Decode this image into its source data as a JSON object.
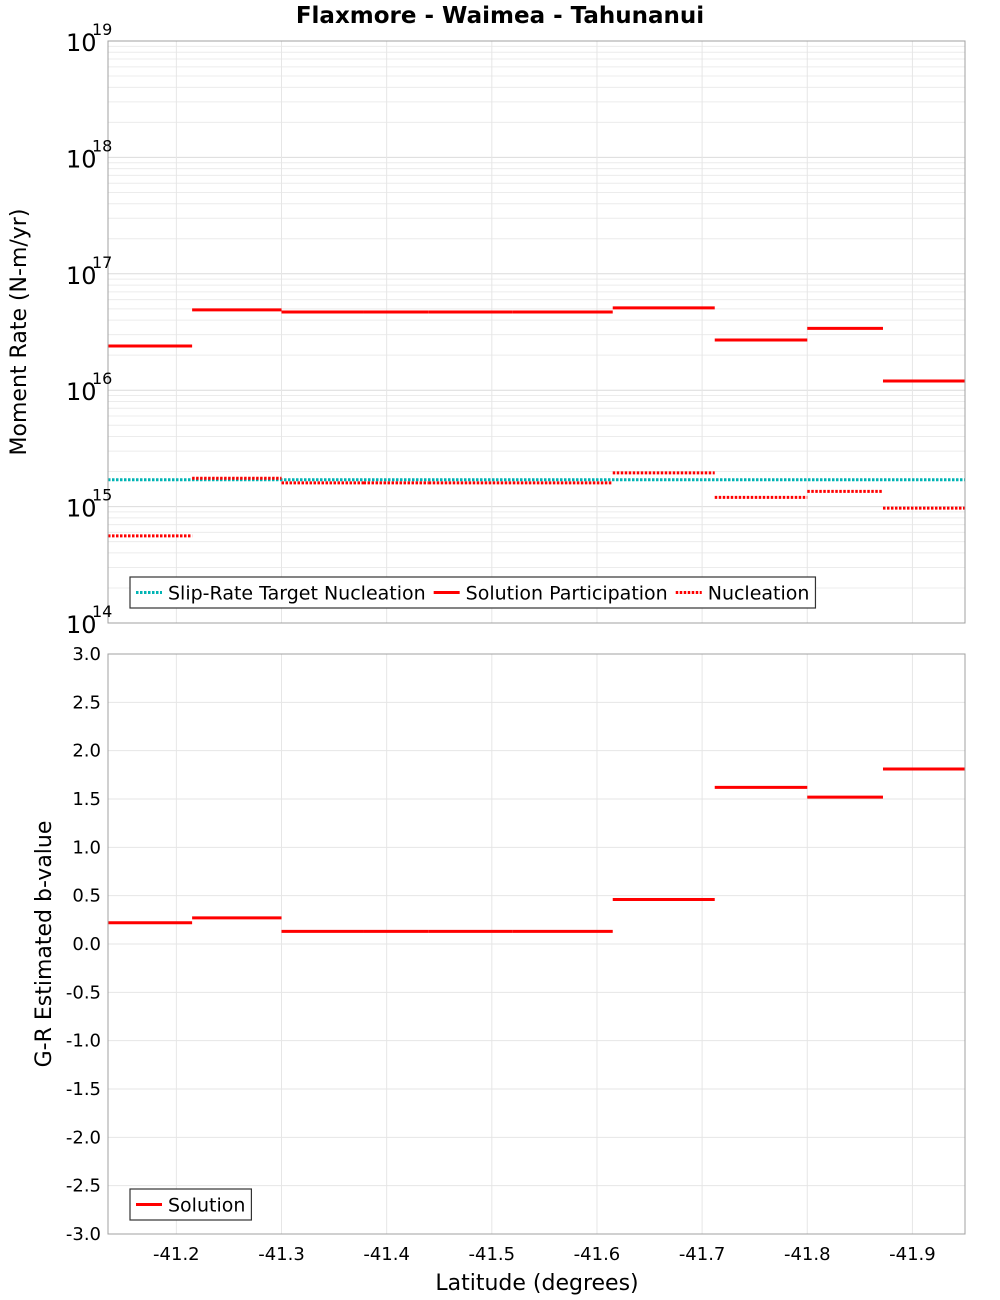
{
  "chart_data": [
    {
      "type": "line",
      "title": "Flaxmore - Waimea - Tahunanui",
      "xlabel": "Latitude (degrees)",
      "ylabel": "Moment Rate (N-m/yr)",
      "yscale": "log",
      "xlim": [
        -41.135,
        -41.95
      ],
      "ylim": [
        100000000000000.0,
        1e+19
      ],
      "x_ticks": [
        -41.2,
        -41.3,
        -41.4,
        -41.5,
        -41.6,
        -41.7,
        -41.8,
        -41.9
      ],
      "x_tick_labels": [
        "-41.2",
        "-41.3",
        "-41.4",
        "-41.5",
        "-41.6",
        "-41.7",
        "-41.8",
        "-41.9"
      ],
      "y_ticks": [
        {
          "value": 100000000000000.0,
          "base": "10",
          "exp": "14"
        },
        {
          "value": 1000000000000000.0,
          "base": "10",
          "exp": "15"
        },
        {
          "value": 1e+16,
          "base": "10",
          "exp": "16"
        },
        {
          "value": 1e+17,
          "base": "10",
          "exp": "17"
        },
        {
          "value": 1e+18,
          "base": "10",
          "exp": "18"
        },
        {
          "value": 1e+19,
          "base": "10",
          "exp": "19"
        }
      ],
      "grid": true,
      "legend_position": "bottom-left",
      "series": [
        {
          "name": "Slip-Rate Target Nucleation",
          "color": "#00b4b4",
          "style": "dotted",
          "segments": [
            {
              "x0": -41.135,
              "x1": -41.95,
              "y": 1700000000000000.0
            }
          ]
        },
        {
          "name": "Solution Participation",
          "color": "#ff0000",
          "style": "solid",
          "segments": [
            {
              "x0": -41.135,
              "x1": -41.215,
              "y": 2.4e+16
            },
            {
              "x0": -41.215,
              "x1": -41.3,
              "y": 4.9e+16
            },
            {
              "x0": -41.3,
              "x1": -41.378,
              "y": 4.7e+16
            },
            {
              "x0": -41.378,
              "x1": -41.44,
              "y": 4.7e+16
            },
            {
              "x0": -41.44,
              "x1": -41.52,
              "y": 4.7e+16
            },
            {
              "x0": -41.52,
              "x1": -41.615,
              "y": 4.7e+16
            },
            {
              "x0": -41.615,
              "x1": -41.712,
              "y": 5.1e+16
            },
            {
              "x0": -41.712,
              "x1": -41.8,
              "y": 2.7e+16
            },
            {
              "x0": -41.8,
              "x1": -41.872,
              "y": 3.4e+16
            },
            {
              "x0": -41.872,
              "x1": -41.95,
              "y": 1.2e+16
            }
          ]
        },
        {
          "name": "Nucleation",
          "color": "#ff0000",
          "style": "dotted",
          "segments": [
            {
              "x0": -41.135,
              "x1": -41.215,
              "y": 560000000000000.0
            },
            {
              "x0": -41.215,
              "x1": -41.3,
              "y": 1750000000000000.0
            },
            {
              "x0": -41.3,
              "x1": -41.378,
              "y": 1600000000000000.0
            },
            {
              "x0": -41.378,
              "x1": -41.44,
              "y": 1600000000000000.0
            },
            {
              "x0": -41.44,
              "x1": -41.52,
              "y": 1600000000000000.0
            },
            {
              "x0": -41.52,
              "x1": -41.615,
              "y": 1600000000000000.0
            },
            {
              "x0": -41.615,
              "x1": -41.712,
              "y": 1950000000000000.0
            },
            {
              "x0": -41.712,
              "x1": -41.8,
              "y": 1200000000000000.0
            },
            {
              "x0": -41.8,
              "x1": -41.872,
              "y": 1350000000000000.0
            },
            {
              "x0": -41.872,
              "x1": -41.95,
              "y": 970000000000000.0
            }
          ]
        }
      ]
    },
    {
      "type": "line",
      "xlabel": "Latitude (degrees)",
      "ylabel": "G-R Estimated b-value",
      "yscale": "linear",
      "xlim": [
        -41.135,
        -41.95
      ],
      "ylim": [
        -3.0,
        3.0
      ],
      "x_ticks": [
        -41.2,
        -41.3,
        -41.4,
        -41.5,
        -41.6,
        -41.7,
        -41.8,
        -41.9
      ],
      "x_tick_labels": [
        "-41.2",
        "-41.3",
        "-41.4",
        "-41.5",
        "-41.6",
        "-41.7",
        "-41.8",
        "-41.9"
      ],
      "y_ticks": [
        -3.0,
        -2.5,
        -2.0,
        -1.5,
        -1.0,
        -0.5,
        0.0,
        0.5,
        1.0,
        1.5,
        2.0,
        2.5,
        3.0
      ],
      "y_tick_labels": [
        "-3.0",
        "-2.5",
        "-2.0",
        "-1.5",
        "-1.0",
        "-0.5",
        "0.0",
        "0.5",
        "1.0",
        "1.5",
        "2.0",
        "2.5",
        "3.0"
      ],
      "grid": true,
      "legend_position": "bottom-left",
      "series": [
        {
          "name": "Solution",
          "color": "#ff0000",
          "style": "solid",
          "segments": [
            {
              "x0": -41.135,
              "x1": -41.215,
              "y": 0.22
            },
            {
              "x0": -41.215,
              "x1": -41.3,
              "y": 0.27
            },
            {
              "x0": -41.3,
              "x1": -41.378,
              "y": 0.13
            },
            {
              "x0": -41.378,
              "x1": -41.44,
              "y": 0.13
            },
            {
              "x0": -41.44,
              "x1": -41.52,
              "y": 0.13
            },
            {
              "x0": -41.52,
              "x1": -41.615,
              "y": 0.13
            },
            {
              "x0": -41.615,
              "x1": -41.712,
              "y": 0.46
            },
            {
              "x0": -41.712,
              "x1": -41.8,
              "y": 1.62
            },
            {
              "x0": -41.8,
              "x1": -41.872,
              "y": 1.52
            },
            {
              "x0": -41.872,
              "x1": -41.95,
              "y": 1.81
            }
          ]
        }
      ]
    }
  ]
}
